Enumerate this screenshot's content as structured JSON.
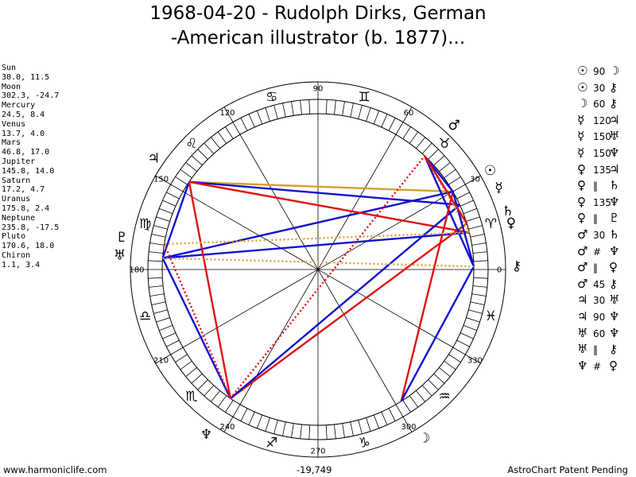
{
  "title_line1": "1968-04-20 - Rudolph Dirks, German",
  "title_line2": "-American illustrator (b. 1877)...",
  "planets": [
    {
      "name": "Sun",
      "value": "30.0, 11.5"
    },
    {
      "name": "Moon",
      "value": "302.3, -24.7"
    },
    {
      "name": "Mercury",
      "value": "24.5, 8.4"
    },
    {
      "name": "Venus",
      "value": "13.7, 4.0"
    },
    {
      "name": "Mars",
      "value": "46.8, 17.0"
    },
    {
      "name": "Jupiter",
      "value": "145.8, 14.0"
    },
    {
      "name": "Saturn",
      "value": "17.2, 4.7"
    },
    {
      "name": "Uranus",
      "value": "175.8, 2.4"
    },
    {
      "name": "Neptune",
      "value": "235.8, -17.5"
    },
    {
      "name": "Pluto",
      "value": "170.6, 18.0"
    },
    {
      "name": "Chiron",
      "value": "1.1, 3.4"
    }
  ],
  "glyphs": {
    "sun": "☉",
    "moon": "☽",
    "mercury": "☿",
    "venus": "♀",
    "mars": "♂",
    "jupiter": "♃",
    "saturn": "♄",
    "uranus": "♅",
    "neptune": "♆",
    "pluto": "♇",
    "chiron": "⚷"
  },
  "zodiac": [
    {
      "sign": "aries",
      "glyph": "♈"
    },
    {
      "sign": "taurus",
      "glyph": "♉"
    },
    {
      "sign": "gemini",
      "glyph": "♊"
    },
    {
      "sign": "cancer",
      "glyph": "♋"
    },
    {
      "sign": "leo",
      "glyph": "♌"
    },
    {
      "sign": "virgo",
      "glyph": "♍"
    },
    {
      "sign": "libra",
      "glyph": "♎"
    },
    {
      "sign": "scorpio",
      "glyph": "♏"
    },
    {
      "sign": "sagittarius",
      "glyph": "♐"
    },
    {
      "sign": "capricorn",
      "glyph": "♑"
    },
    {
      "sign": "aquarius",
      "glyph": "♒"
    },
    {
      "sign": "pisces",
      "glyph": "♓"
    }
  ],
  "angle_labels": [
    {
      "deg": 0,
      "label": "0"
    },
    {
      "deg": 30,
      "label": "30"
    },
    {
      "deg": 60,
      "label": "60"
    },
    {
      "deg": 90,
      "label": "90"
    },
    {
      "deg": 120,
      "label": "120"
    },
    {
      "deg": 150,
      "label": "150"
    },
    {
      "deg": 180,
      "label": "180"
    },
    {
      "deg": 210,
      "label": "210"
    },
    {
      "deg": 240,
      "label": "240"
    },
    {
      "deg": 270,
      "label": "270"
    },
    {
      "deg": 300,
      "label": "300"
    },
    {
      "deg": 330,
      "label": "330"
    }
  ],
  "aspects": [
    {
      "p1": "sun",
      "angle": "90",
      "p2": "moon"
    },
    {
      "p1": "sun",
      "angle": "30",
      "p2": "chiron"
    },
    {
      "p1": "moon",
      "angle": "60",
      "p2": "chiron"
    },
    {
      "p1": "mercury",
      "angle": "120",
      "p2": "jupiter"
    },
    {
      "p1": "mercury",
      "angle": "150",
      "p2": "uranus"
    },
    {
      "p1": "mercury",
      "angle": "150",
      "p2": "neptune"
    },
    {
      "p1": "venus",
      "angle": "135",
      "p2": "jupiter"
    },
    {
      "p1": "venus",
      "angle": "‖",
      "p2": "saturn"
    },
    {
      "p1": "venus",
      "angle": "135",
      "p2": "neptune"
    },
    {
      "p1": "venus",
      "angle": "‖",
      "p2": "pluto"
    },
    {
      "p1": "mars",
      "angle": "30",
      "p2": "saturn"
    },
    {
      "p1": "mars",
      "angle": "#",
      "p2": "neptune"
    },
    {
      "p1": "mars",
      "angle": "‖",
      "p2": "venus"
    },
    {
      "p1": "mars",
      "angle": "45",
      "p2": "chiron"
    },
    {
      "p1": "jupiter",
      "angle": "30",
      "p2": "uranus"
    },
    {
      "p1": "jupiter",
      "angle": "90",
      "p2": "neptune"
    },
    {
      "p1": "uranus",
      "angle": "60",
      "p2": "neptune"
    },
    {
      "p1": "uranus",
      "angle": "‖",
      "p2": "chiron"
    },
    {
      "p1": "neptune",
      "angle": "#",
      "p2": "venus"
    }
  ],
  "chart_lines": [
    {
      "a": "jupiter",
      "b": "sun",
      "color": "#d4a030",
      "dash": false
    },
    {
      "a": "uranus",
      "b": "sun",
      "color": "#1010d0",
      "dash": false
    },
    {
      "a": "uranus",
      "b": "venus",
      "color": "#1010d0",
      "dash": false
    },
    {
      "a": "uranus",
      "b": "neptune",
      "color": "#1010d0",
      "dash": false
    },
    {
      "a": "jupiter",
      "b": "mercury",
      "color": "#1010d0",
      "dash": false
    },
    {
      "a": "jupiter",
      "b": "uranus",
      "color": "#1010d0",
      "dash": false
    },
    {
      "a": "jupiter",
      "b": "neptune",
      "color": "#e01010",
      "dash": false
    },
    {
      "a": "jupiter",
      "b": "venus",
      "color": "#e01010",
      "dash": false
    },
    {
      "a": "neptune",
      "b": "saturn",
      "color": "#e01010",
      "dash": false
    },
    {
      "a": "neptune",
      "b": "mercury",
      "color": "#1010d0",
      "dash": false
    },
    {
      "a": "neptune",
      "b": "mars",
      "color": "#e01010",
      "dash": true
    },
    {
      "a": "mars",
      "b": "sun",
      "color": "#1010d0",
      "dash": false
    },
    {
      "a": "mars",
      "b": "chiron",
      "color": "#1010d0",
      "dash": false
    },
    {
      "a": "mars",
      "b": "saturn",
      "color": "#e01010",
      "dash": false
    },
    {
      "a": "mars",
      "b": "venus",
      "color": "#d4a030",
      "dash": true
    },
    {
      "a": "moon",
      "b": "sun",
      "color": "#e01010",
      "dash": false
    },
    {
      "a": "moon",
      "b": "chiron",
      "color": "#1010d0",
      "dash": false
    },
    {
      "a": "sun",
      "b": "chiron",
      "color": "#1010d0",
      "dash": false
    },
    {
      "a": "pluto",
      "b": "venus",
      "color": "#d4a030",
      "dash": true
    },
    {
      "a": "uranus",
      "b": "chiron",
      "color": "#d4a030",
      "dash": true
    },
    {
      "a": "pluto",
      "b": "neptune",
      "color": "#e01010",
      "dash": true
    },
    {
      "a": "saturn",
      "b": "mars",
      "color": "#e01010",
      "dash": false
    }
  ],
  "colors": {
    "red": "#e01010",
    "blue": "#1010d0",
    "gold": "#d4a030"
  },
  "footer_left": "www.harmoniclife.com",
  "footer_center": "-19,749",
  "footer_right": "AstroChart Patent Pending"
}
